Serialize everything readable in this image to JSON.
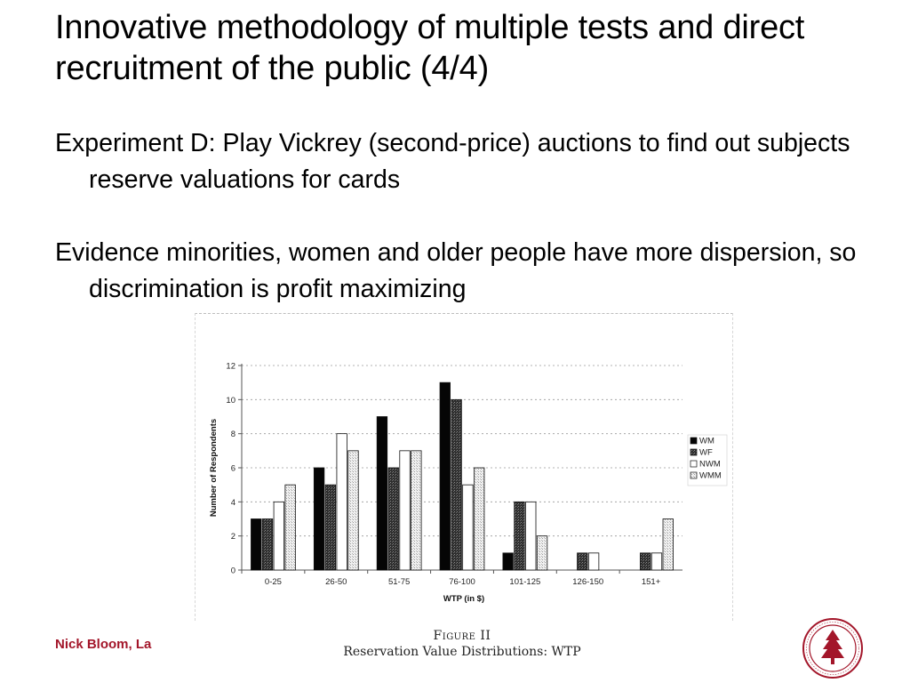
{
  "slide": {
    "title": "Innovative methodology of multiple tests and direct recruitment of the public (4/4)",
    "bullets": [
      "Experiment D: Play Vickrey (second-price) auctions to find out subjects reserve valuations for cards",
      "Evidence minorities, women and older people have more dispersion, so discrimination is profit maximizing"
    ],
    "footer_author": "Nick Bloom, La"
  },
  "figure": {
    "label": "Figure II",
    "caption": "Reservation Value Distributions: WTP"
  },
  "colors": {
    "accent": "#a3162a",
    "axis": "#555555",
    "grid": "#9a9a9a"
  },
  "chart_data": {
    "type": "bar",
    "categories": [
      "0-25",
      "26-50",
      "51-75",
      "76-100",
      "101-125",
      "126-150",
      "151+"
    ],
    "series": [
      {
        "name": "WM",
        "values": [
          3,
          6,
          9,
          11,
          1,
          0,
          0
        ],
        "fill": "solid-black"
      },
      {
        "name": "WF",
        "values": [
          3,
          5,
          6,
          10,
          4,
          1,
          1
        ],
        "fill": "dark-hatched"
      },
      {
        "name": "NWM",
        "values": [
          4,
          8,
          7,
          5,
          4,
          1,
          1
        ],
        "fill": "white"
      },
      {
        "name": "WMM",
        "values": [
          5,
          7,
          7,
          6,
          2,
          0,
          3
        ],
        "fill": "light-dotted"
      }
    ],
    "xlabel": "WTP (in $)",
    "ylabel": "Number of Respondents",
    "yticks": [
      0,
      2,
      4,
      6,
      8,
      10,
      12
    ],
    "ylim": [
      0,
      12
    ],
    "grid": "horizontal-dashed",
    "legend": "right"
  }
}
